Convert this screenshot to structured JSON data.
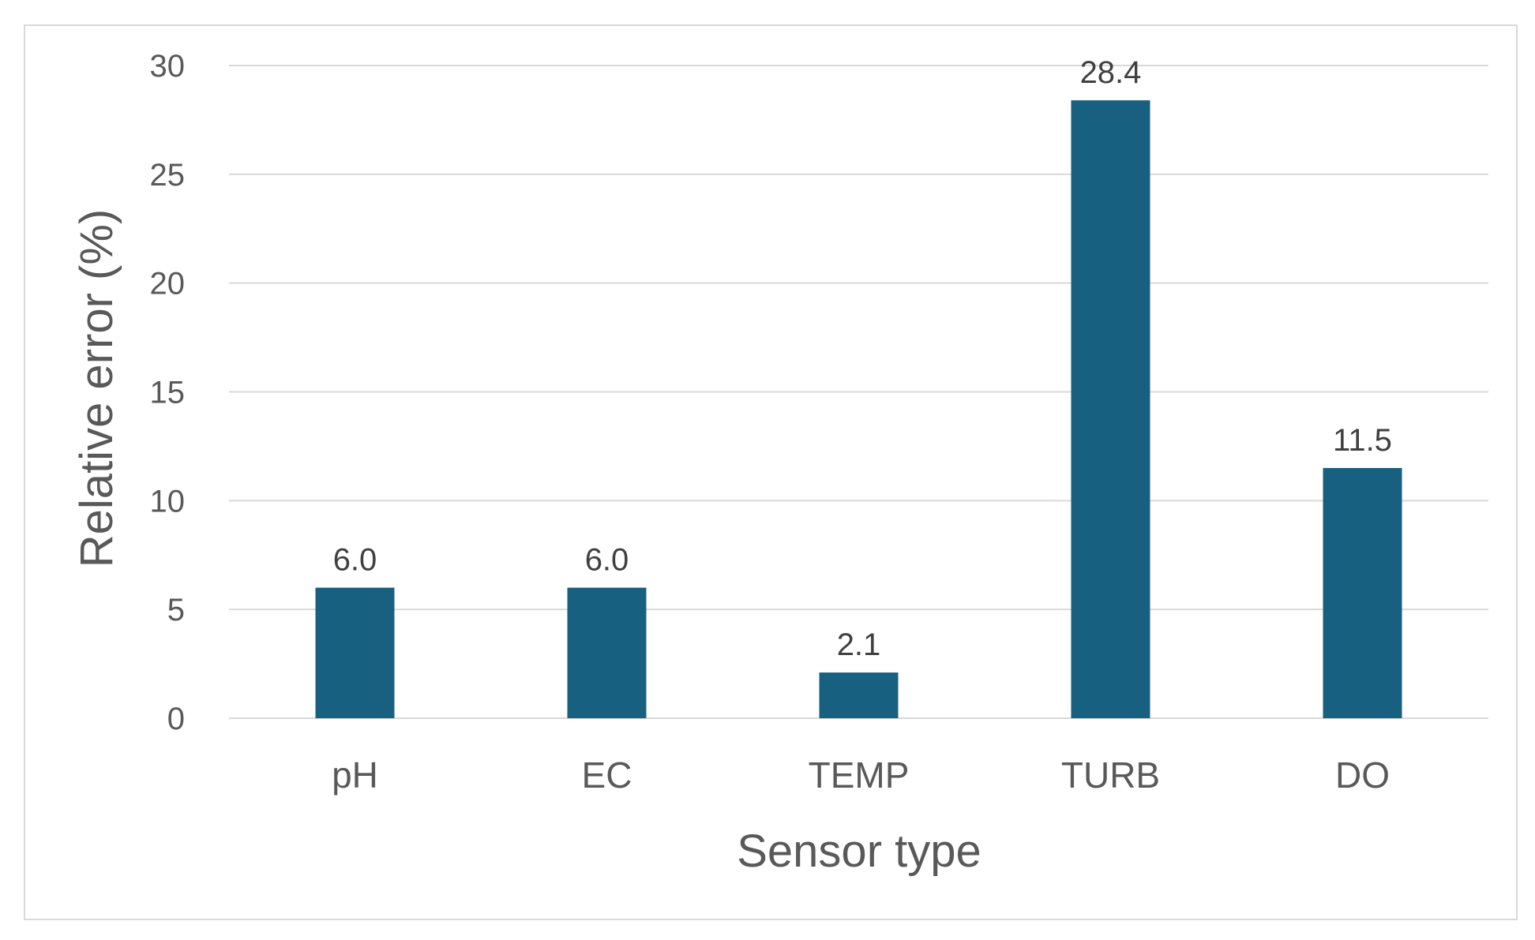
{
  "chart_data": {
    "type": "bar",
    "title": "",
    "categories": [
      "pH",
      "EC",
      "TEMP",
      "TURB",
      "DO"
    ],
    "values": [
      6.0,
      6.0,
      2.1,
      28.4,
      11.5
    ],
    "data_labels": [
      "6.0",
      "6.0",
      "2.1",
      "28.4",
      "11.5"
    ],
    "xlabel": "Sensor type",
    "ylabel": "Relative error (%)",
    "ylim": [
      0,
      30
    ],
    "yticks": [
      0,
      5,
      10,
      15,
      20,
      25,
      30
    ],
    "grid": true,
    "legend": "none",
    "colors": {
      "bar": "#17607F",
      "text": "#595959",
      "grid": "#D9D9D9",
      "label": "#404040"
    }
  }
}
